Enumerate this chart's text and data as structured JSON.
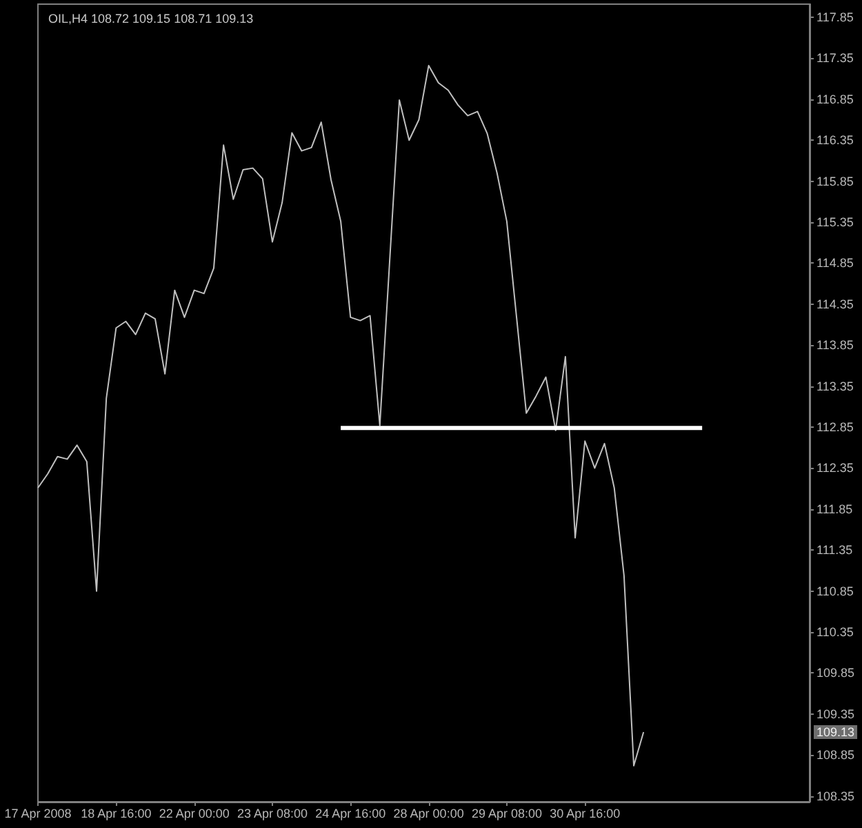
{
  "chart_data": {
    "type": "line",
    "title": "OIL,H4 108.72 109.15 108.71 109.13",
    "categories": [
      "17 Apr 2008",
      null,
      null,
      null,
      null,
      null,
      null,
      null,
      "18 Apr 16:00",
      null,
      null,
      null,
      null,
      null,
      null,
      null,
      "22 Apr 00:00",
      null,
      null,
      null,
      null,
      null,
      null,
      null,
      "23 Apr 08:00",
      null,
      null,
      null,
      null,
      null,
      null,
      null,
      "24 Apr 16:00",
      null,
      null,
      null,
      null,
      null,
      null,
      null,
      "28 Apr 00:00",
      null,
      null,
      null,
      null,
      null,
      null,
      null,
      "29 Apr 08:00",
      null,
      null,
      null,
      null,
      null,
      null,
      null,
      "30 Apr 16:00",
      null,
      null,
      null,
      null,
      null,
      null,
      null,
      null,
      null,
      null,
      null,
      null,
      null,
      null,
      null,
      null,
      null,
      null,
      null,
      null,
      null,
      null,
      null
    ],
    "series": [
      {
        "color": "#c0c0c0",
        "values": [
          112.11,
          112.28,
          112.49,
          112.46,
          112.63,
          112.43,
          110.85,
          113.2,
          114.06,
          114.14,
          113.98,
          114.24,
          114.17,
          113.5,
          114.52,
          114.19,
          114.52,
          114.48,
          114.79,
          116.29,
          115.63,
          115.99,
          116.01,
          115.88,
          115.11,
          115.59,
          116.44,
          116.22,
          116.26,
          116.57,
          115.87,
          115.36,
          114.19,
          114.15,
          114.21,
          112.87,
          114.86,
          116.84,
          116.35,
          116.6,
          117.26,
          117.05,
          116.96,
          116.78,
          116.65,
          116.7,
          116.43,
          115.95,
          115.36,
          114.19,
          113.02,
          113.23,
          113.46,
          112.81,
          113.71,
          111.5,
          112.68,
          112.35,
          112.65,
          112.11,
          111.04,
          108.72,
          109.13,
          null,
          null,
          null,
          null,
          null,
          null,
          null,
          null,
          null,
          null,
          null,
          null,
          null,
          null,
          null,
          null,
          null
        ]
      },
      {
        "color": "#ffffff",
        "values": [
          null,
          null,
          null,
          null,
          null,
          null,
          null,
          null,
          null,
          null,
          null,
          null,
          null,
          null,
          null,
          null,
          null,
          null,
          null,
          null,
          null,
          null,
          null,
          null,
          null,
          null,
          null,
          null,
          null,
          null,
          null,
          112.84,
          112.84,
          112.84,
          112.84,
          112.84,
          112.84,
          112.84,
          112.84,
          112.84,
          112.84,
          112.84,
          112.84,
          112.84,
          112.84,
          112.84,
          112.84,
          112.84,
          112.84,
          112.84,
          112.84,
          112.84,
          112.84,
          112.84,
          112.84,
          112.84,
          112.84,
          112.84,
          112.84,
          112.84,
          112.84,
          112.84,
          112.84,
          112.84,
          112.84,
          112.84,
          112.84,
          112.84,
          112.84,
          null,
          null,
          null,
          null,
          null,
          null,
          null,
          null,
          null,
          null,
          null
        ]
      }
    ],
    "ylim": [
      108.28,
      118.01
    ],
    "yticks": [
      108.35,
      108.85,
      109.35,
      109.85,
      110.35,
      110.85,
      111.35,
      111.85,
      112.35,
      112.85,
      113.35,
      113.85,
      114.35,
      114.85,
      115.35,
      115.85,
      116.35,
      116.85,
      117.35,
      117.85
    ],
    "annotations": [
      {
        "text": "109.13",
        "y": 109.13
      }
    ],
    "grid": false,
    "marker": "none",
    "line_style": "solid"
  }
}
